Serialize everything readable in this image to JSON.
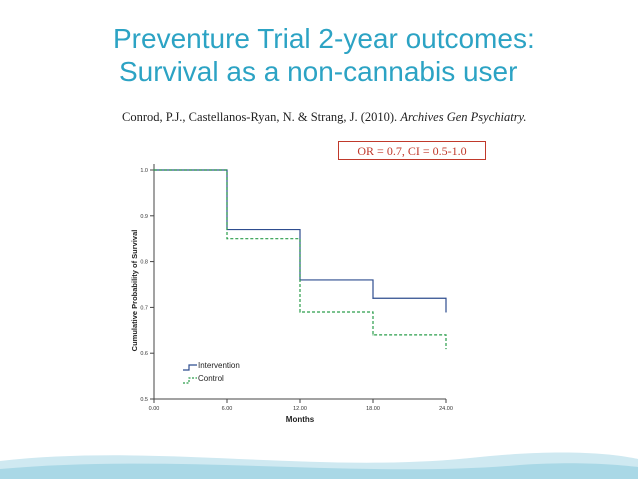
{
  "slide": {
    "title_line1": "Preventure Trial 2-year outcomes:",
    "title_line2": "Survival as a non-cannabis user",
    "citation_plain": "Conrod, P.J., Castellanos-Ryan, N. & Strang, J.  (2010). ",
    "citation_journal": "Archives Gen Psychiatry.",
    "stat_box": "OR = 0.7, CI = 0.5-1.0",
    "accent_color": "#2ca3c4",
    "stat_color": "#c0392b"
  },
  "chart_data": {
    "type": "line",
    "step": true,
    "xlabel": "Months",
    "ylabel": "Cumulative Probability of Survival",
    "xticks": [
      0,
      6,
      12,
      18,
      24
    ],
    "xtick_labels": [
      "0.00",
      "6.00",
      "12.00",
      "18.00",
      "24.00"
    ],
    "yticks": [
      0.5,
      0.6,
      0.7,
      0.8,
      0.9,
      1.0
    ],
    "ytick_labels": [
      "0.5",
      "0.6",
      "0.7",
      "0.8",
      "0.9",
      "1.0"
    ],
    "xlim": [
      0,
      24
    ],
    "ylim": [
      0.5,
      1.0
    ],
    "legend_position": "bottom-left",
    "series": [
      {
        "name": "Intervention",
        "color": "#2e4d8f",
        "dash": "solid",
        "x": [
          0,
          6,
          12,
          18,
          24
        ],
        "y": [
          1.0,
          0.87,
          0.76,
          0.72,
          0.69
        ]
      },
      {
        "name": "Control",
        "color": "#2a9d4a",
        "dash": "dashed",
        "x": [
          0,
          6,
          12,
          18,
          24
        ],
        "y": [
          1.0,
          0.85,
          0.69,
          0.64,
          0.61
        ]
      }
    ]
  }
}
